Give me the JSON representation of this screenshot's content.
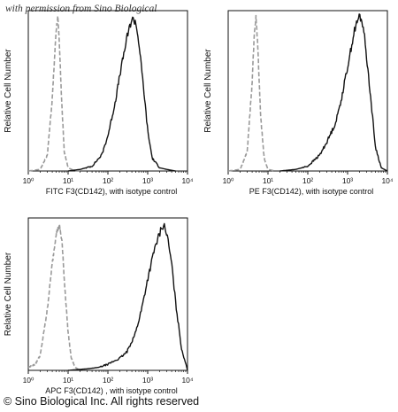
{
  "watermark": "with permission from Sino Biological",
  "copyright": "© Sino Biological Inc. All rights reserved",
  "chart_data": [
    {
      "type": "histogram",
      "xlabel": "FITC F3(CD142),  with isotype control",
      "ylabel": "Relative Cell Number",
      "xscale": "log",
      "xlim": [
        1,
        10000
      ],
      "xticks": [
        "10⁰",
        "10¹",
        "10²",
        "10³",
        "10⁴"
      ],
      "series": [
        {
          "style": "dashed",
          "color": "#9a9a9a",
          "peak_x": 5.5,
          "x": [
            1,
            2,
            3,
            4,
            5,
            5.5,
            6,
            7,
            8,
            10,
            15,
            20
          ],
          "y": [
            0.0,
            0.01,
            0.1,
            0.45,
            0.88,
            0.96,
            0.8,
            0.4,
            0.12,
            0.02,
            0.0,
            0.0
          ]
        },
        {
          "style": "solid",
          "color": "#111111",
          "peak_x": 450,
          "x": [
            10,
            20,
            40,
            70,
            100,
            150,
            200,
            300,
            400,
            500,
            600,
            800,
            1000,
            1300,
            2000,
            3000,
            5000
          ],
          "y": [
            0.0,
            0.01,
            0.03,
            0.1,
            0.22,
            0.42,
            0.6,
            0.83,
            0.95,
            0.93,
            0.8,
            0.5,
            0.25,
            0.08,
            0.02,
            0.01,
            0.0
          ]
        }
      ]
    },
    {
      "type": "histogram",
      "xlabel": "PE F3(CD142),  with isotype control",
      "ylabel": "Relative Cell Number",
      "xscale": "log",
      "xlim": [
        1,
        10000
      ],
      "xticks": [
        "10⁰",
        "10¹",
        "10²",
        "10³",
        "10⁴"
      ],
      "series": [
        {
          "style": "dashed",
          "color": "#9a9a9a",
          "peak_x": 5,
          "x": [
            1,
            2,
            3,
            4,
            4.5,
            5,
            5.5,
            6.5,
            8,
            10,
            15
          ],
          "y": [
            0.0,
            0.01,
            0.12,
            0.55,
            0.85,
            0.96,
            0.8,
            0.35,
            0.08,
            0.01,
            0.0
          ]
        },
        {
          "style": "solid",
          "color": "#111111",
          "peak_x": 2000,
          "x": [
            20,
            50,
            100,
            200,
            300,
            500,
            700,
            1000,
            1500,
            2000,
            2500,
            3500,
            5000,
            7000,
            10000
          ],
          "y": [
            0.0,
            0.01,
            0.03,
            0.1,
            0.18,
            0.3,
            0.45,
            0.65,
            0.88,
            0.97,
            0.9,
            0.55,
            0.15,
            0.02,
            0.0
          ]
        }
      ]
    },
    {
      "type": "histogram",
      "xlabel": "APC F3(CD142) , with isotype control",
      "ylabel": "Relative Cell Number",
      "xscale": "log",
      "xlim": [
        1,
        10000
      ],
      "xticks": [
        "10⁰",
        "10¹",
        "10²",
        "10³",
        "10⁴"
      ],
      "series": [
        {
          "style": "dashed",
          "color": "#9a9a9a",
          "peak_x": 6,
          "x": [
            1,
            1.5,
            2,
            3,
            4,
            5,
            6,
            7,
            8,
            10,
            12,
            15,
            20
          ],
          "y": [
            0.02,
            0.04,
            0.1,
            0.4,
            0.7,
            0.9,
            0.95,
            0.85,
            0.6,
            0.25,
            0.08,
            0.02,
            0.0
          ]
        },
        {
          "style": "solid",
          "color": "#111111",
          "peak_x": 2500,
          "x": [
            10,
            30,
            60,
            100,
            200,
            300,
            500,
            700,
            1000,
            1500,
            2000,
            2500,
            3000,
            4000,
            5000,
            7000,
            10000
          ],
          "y": [
            0.0,
            0.01,
            0.02,
            0.04,
            0.08,
            0.12,
            0.25,
            0.4,
            0.6,
            0.8,
            0.9,
            0.96,
            0.9,
            0.7,
            0.45,
            0.15,
            0.0
          ]
        }
      ]
    }
  ]
}
